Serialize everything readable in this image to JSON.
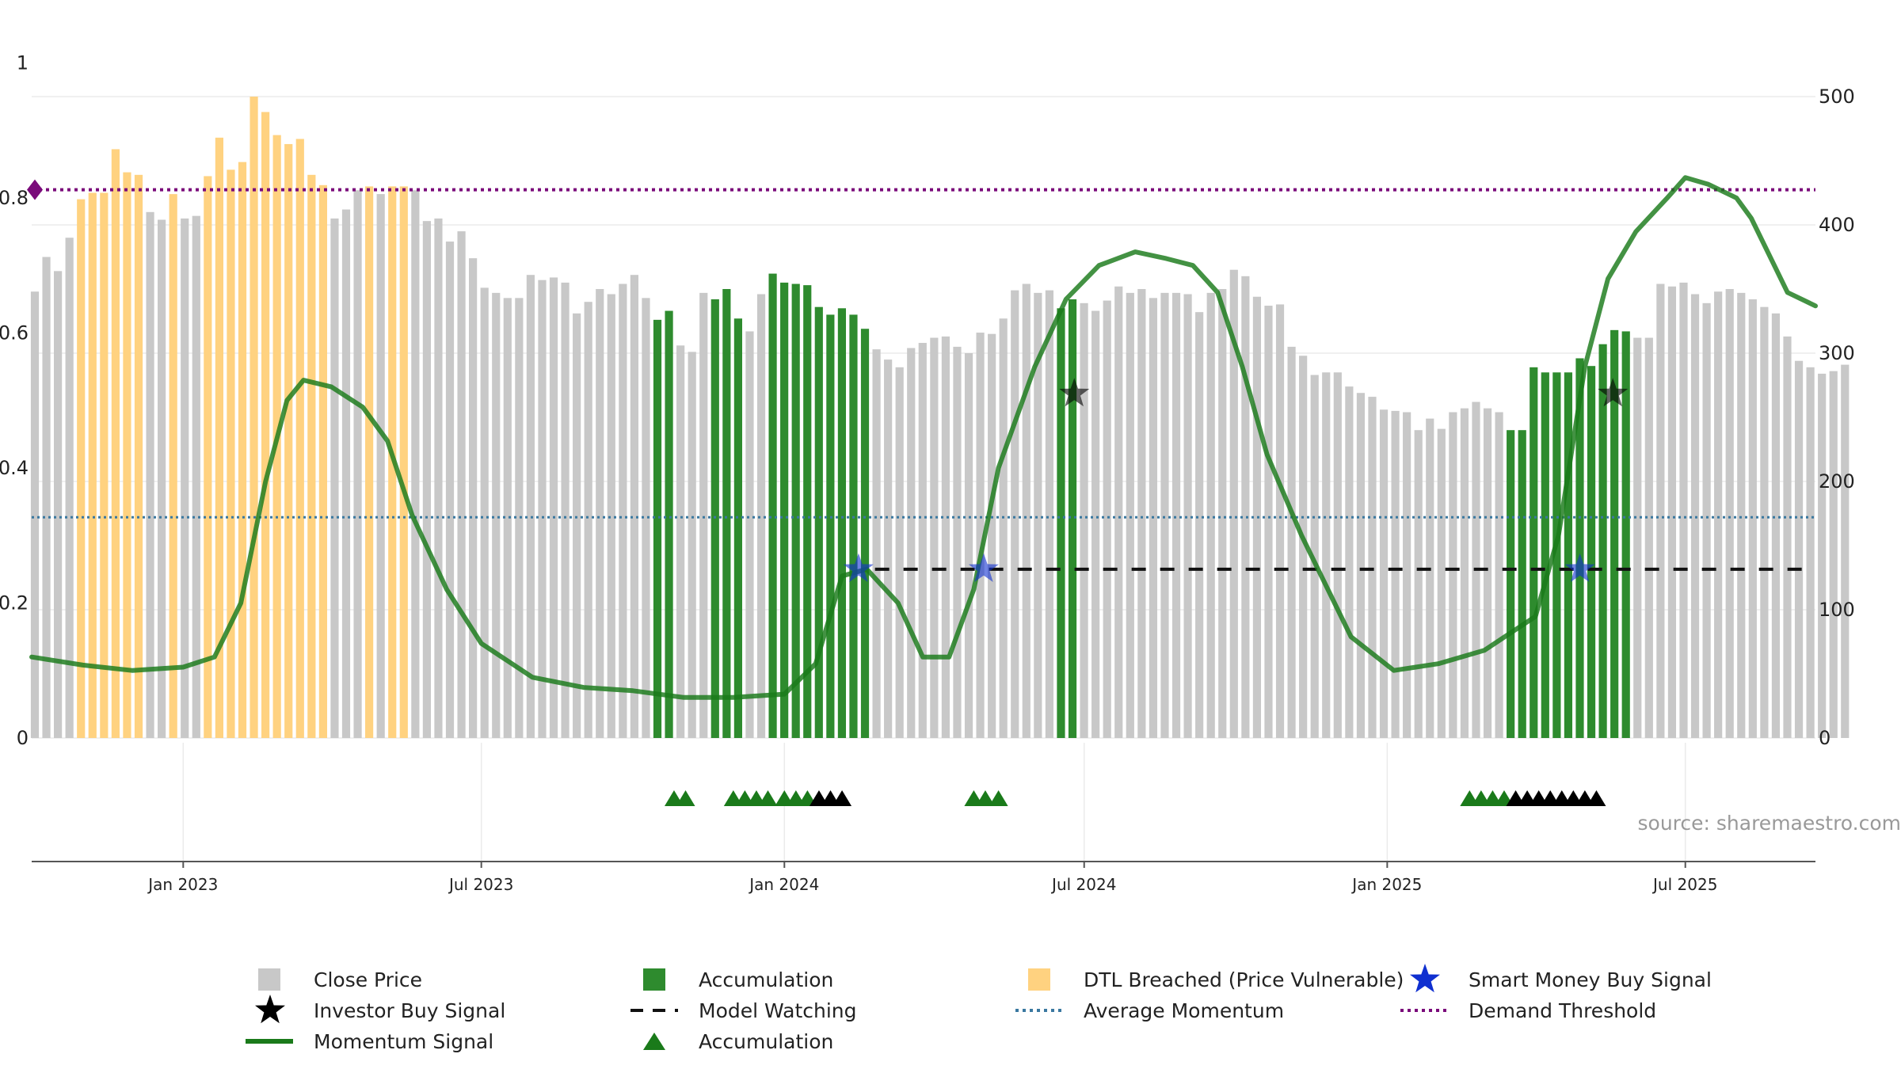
{
  "chart_data": {
    "type": "bar",
    "source": "source: sharemaestro.com",
    "x_range": [
      "2022-10-01",
      "2025-09-18"
    ],
    "x_ticks": [
      {
        "label": "Jan 2023",
        "date": "2023-01-01"
      },
      {
        "label": "Jul 2023",
        "date": "2023-07-01"
      },
      {
        "label": "Jan 2024",
        "date": "2024-01-01"
      },
      {
        "label": "Jul 2024",
        "date": "2024-07-01"
      },
      {
        "label": "Jan 2025",
        "date": "2025-01-01"
      },
      {
        "label": "Jul 2025",
        "date": "2025-07-01"
      }
    ],
    "left_axis": {
      "range": [
        0,
        0.95
      ],
      "ticks": [
        {
          "label": "0",
          "value": 0
        },
        {
          "label": "0.2",
          "value": 0.2
        },
        {
          "label": "0.4",
          "value": 0.4
        },
        {
          "label": "0.6",
          "value": 0.6
        },
        {
          "label": "0.8",
          "value": 0.8
        },
        {
          "label": "1",
          "value": 1.0
        }
      ]
    },
    "right_axis": {
      "range": [
        0,
        500
      ],
      "ticks": [
        0,
        100,
        200,
        300,
        400,
        500
      ]
    },
    "colors": {
      "close": "#c8c8c8",
      "dtl": "#ffd280",
      "accumulation": "#2e8b2e",
      "momentum": "#1a7a1a",
      "average": "#3a78a0",
      "threshold": "#7a0a7a",
      "watching": "#111111",
      "smart_money": "#1030d0",
      "investor": "#000000",
      "marker_accum": "#1a7a1a",
      "marker_black": "#000000"
    },
    "bar_series": {
      "start_date": "2022-10-01",
      "interval_days": 7,
      "values": [
        348,
        375,
        364,
        390,
        420,
        425,
        425,
        459,
        441,
        439,
        410,
        404,
        424,
        405,
        407,
        438,
        468,
        443,
        449,
        500,
        488,
        470,
        463,
        467,
        439,
        431,
        405,
        412,
        427,
        430,
        424,
        430,
        430,
        427,
        403,
        405,
        387,
        395,
        374,
        351,
        347,
        343,
        343,
        361,
        357,
        359,
        355,
        331,
        340,
        350,
        346,
        354,
        361,
        343,
        326,
        333,
        306,
        301,
        347,
        342,
        350,
        327,
        317,
        346,
        362,
        355,
        354,
        353,
        336,
        330,
        335,
        330,
        319,
        303,
        295,
        289,
        304,
        308,
        312,
        313,
        305,
        300,
        316,
        315,
        327,
        349,
        354,
        347,
        349,
        335,
        342,
        339,
        333,
        341,
        352,
        347,
        350,
        343,
        347,
        347,
        346,
        332,
        347,
        350,
        365,
        360,
        344,
        337,
        338,
        305,
        298,
        283,
        285,
        285,
        274,
        269,
        266,
        256,
        255,
        254,
        240,
        249,
        241,
        254,
        257,
        262,
        257,
        254,
        240,
        240,
        289,
        285,
        285,
        285,
        296,
        290,
        307,
        318,
        317,
        312,
        312,
        354,
        352,
        355,
        346,
        339,
        348,
        350,
        347,
        342,
        336,
        331,
        313,
        294,
        289,
        284,
        286,
        291
      ],
      "states": [
        "c",
        "c",
        "c",
        "c",
        "d",
        "d",
        "d",
        "d",
        "d",
        "d",
        "c",
        "c",
        "d",
        "c",
        "c",
        "d",
        "d",
        "d",
        "d",
        "d",
        "d",
        "d",
        "d",
        "d",
        "d",
        "d",
        "c",
        "c",
        "c",
        "d",
        "c",
        "d",
        "d",
        "c",
        "c",
        "c",
        "c",
        "c",
        "c",
        "c",
        "c",
        "c",
        "c",
        "c",
        "c",
        "c",
        "c",
        "c",
        "c",
        "c",
        "c",
        "c",
        "c",
        "c",
        "a",
        "a",
        "c",
        "c",
        "c",
        "a",
        "a",
        "a",
        "c",
        "c",
        "a",
        "a",
        "a",
        "a",
        "a",
        "a",
        "a",
        "a",
        "a",
        "c",
        "c",
        "c",
        "c",
        "c",
        "c",
        "c",
        "c",
        "c",
        "c",
        "c",
        "c",
        "c",
        "c",
        "c",
        "c",
        "a",
        "a",
        "c",
        "c",
        "c",
        "c",
        "c",
        "c",
        "c",
        "c",
        "c",
        "c",
        "c",
        "c",
        "c",
        "c",
        "c",
        "c",
        "c",
        "c",
        "c",
        "c",
        "c",
        "c",
        "c",
        "c",
        "c",
        "c",
        "c",
        "c",
        "c",
        "c",
        "c",
        "c",
        "c",
        "c",
        "c",
        "c",
        "c",
        "a",
        "a",
        "a",
        "a",
        "a",
        "a",
        "a",
        "a",
        "a",
        "a",
        "a",
        "c",
        "c",
        "c",
        "c",
        "c",
        "c",
        "c",
        "c",
        "c",
        "c",
        "c",
        "c",
        "c",
        "c",
        "c",
        "c",
        "c",
        "c",
        "c"
      ]
    },
    "momentum_signal": [
      [
        "2022-10-01",
        0.12
      ],
      [
        "2022-11-01",
        0.108
      ],
      [
        "2022-12-01",
        0.1
      ],
      [
        "2023-01-01",
        0.105
      ],
      [
        "2023-01-20",
        0.12
      ],
      [
        "2023-02-05",
        0.2
      ],
      [
        "2023-02-20",
        0.38
      ],
      [
        "2023-03-05",
        0.5
      ],
      [
        "2023-03-15",
        0.53
      ],
      [
        "2023-04-01",
        0.52
      ],
      [
        "2023-04-20",
        0.49
      ],
      [
        "2023-05-05",
        0.44
      ],
      [
        "2023-05-20",
        0.33
      ],
      [
        "2023-06-10",
        0.22
      ],
      [
        "2023-07-01",
        0.14
      ],
      [
        "2023-08-01",
        0.09
      ],
      [
        "2023-09-01",
        0.075
      ],
      [
        "2023-10-01",
        0.07
      ],
      [
        "2023-11-01",
        0.06
      ],
      [
        "2023-12-01",
        0.06
      ],
      [
        "2024-01-01",
        0.065
      ],
      [
        "2024-01-20",
        0.11
      ],
      [
        "2024-02-05",
        0.24
      ],
      [
        "2024-02-20",
        0.25
      ],
      [
        "2024-03-10",
        0.2
      ],
      [
        "2024-03-25",
        0.12
      ],
      [
        "2024-04-10",
        0.12
      ],
      [
        "2024-04-25",
        0.22
      ],
      [
        "2024-05-10",
        0.4
      ],
      [
        "2024-06-01",
        0.55
      ],
      [
        "2024-06-20",
        0.65
      ],
      [
        "2024-07-10",
        0.7
      ],
      [
        "2024-08-01",
        0.72
      ],
      [
        "2024-08-20",
        0.71
      ],
      [
        "2024-09-05",
        0.7
      ],
      [
        "2024-09-20",
        0.66
      ],
      [
        "2024-10-05",
        0.55
      ],
      [
        "2024-10-20",
        0.42
      ],
      [
        "2024-11-10",
        0.3
      ],
      [
        "2024-12-10",
        0.15
      ],
      [
        "2025-01-05",
        0.1
      ],
      [
        "2025-02-01",
        0.11
      ],
      [
        "2025-03-01",
        0.13
      ],
      [
        "2025-04-01",
        0.18
      ],
      [
        "2025-04-15",
        0.3
      ],
      [
        "2025-05-01",
        0.55
      ],
      [
        "2025-05-15",
        0.68
      ],
      [
        "2025-06-01",
        0.75
      ],
      [
        "2025-06-20",
        0.8
      ],
      [
        "2025-07-01",
        0.83
      ],
      [
        "2025-07-15",
        0.82
      ],
      [
        "2025-08-01",
        0.8
      ],
      [
        "2025-08-10",
        0.77
      ],
      [
        "2025-08-20",
        0.72
      ],
      [
        "2025-09-01",
        0.66
      ],
      [
        "2025-09-18",
        0.64
      ]
    ],
    "average_momentum": 0.327,
    "demand_threshold": 0.812,
    "model_watching": {
      "value": 0.25,
      "from": "2024-02-25",
      "to": "2025-09-18"
    },
    "smart_money_buy": [
      [
        "2024-02-15",
        0.25
      ],
      [
        "2024-05-01",
        0.25
      ],
      [
        "2025-04-28",
        0.25
      ]
    ],
    "investor_buy": [
      [
        "2024-06-25",
        0.51
      ],
      [
        "2025-05-18",
        0.51
      ]
    ],
    "accumulation_markers": {
      "green": [
        "2023-10-26",
        "2023-11-02",
        "2023-12-01",
        "2023-12-08",
        "2023-12-15",
        "2023-12-22",
        "2024-01-01",
        "2024-01-08",
        "2024-01-15",
        "2024-04-25",
        "2024-05-02",
        "2024-05-10",
        "2025-02-20",
        "2025-02-27",
        "2025-03-06",
        "2025-03-13"
      ],
      "black": [
        "2024-01-22",
        "2024-01-29",
        "2024-02-05",
        "2025-03-20",
        "2025-03-27",
        "2025-04-03",
        "2025-04-10",
        "2025-04-17",
        "2025-04-24",
        "2025-05-01",
        "2025-05-08"
      ]
    },
    "legend": [
      {
        "key": "close",
        "label": "Close Price",
        "symbol": "square"
      },
      {
        "key": "accumulation",
        "label": "Accumulation",
        "symbol": "square"
      },
      {
        "key": "dtl",
        "label": "DTL Breached (Price Vulnerable)",
        "symbol": "square"
      },
      {
        "key": "smart_money",
        "label": "Smart Money Buy Signal",
        "symbol": "star"
      },
      {
        "key": "investor",
        "label": "Investor Buy Signal",
        "symbol": "star"
      },
      {
        "key": "watching",
        "label": "Model Watching",
        "symbol": "dash"
      },
      {
        "key": "average",
        "label": "Average Momentum",
        "symbol": "dot"
      },
      {
        "key": "threshold",
        "label": "Demand Threshold",
        "symbol": "dot"
      },
      {
        "key": "momentum",
        "label": "Momentum Signal",
        "symbol": "line"
      },
      {
        "key": "marker_accum",
        "label": "Accumulation",
        "symbol": "triangle"
      }
    ]
  }
}
